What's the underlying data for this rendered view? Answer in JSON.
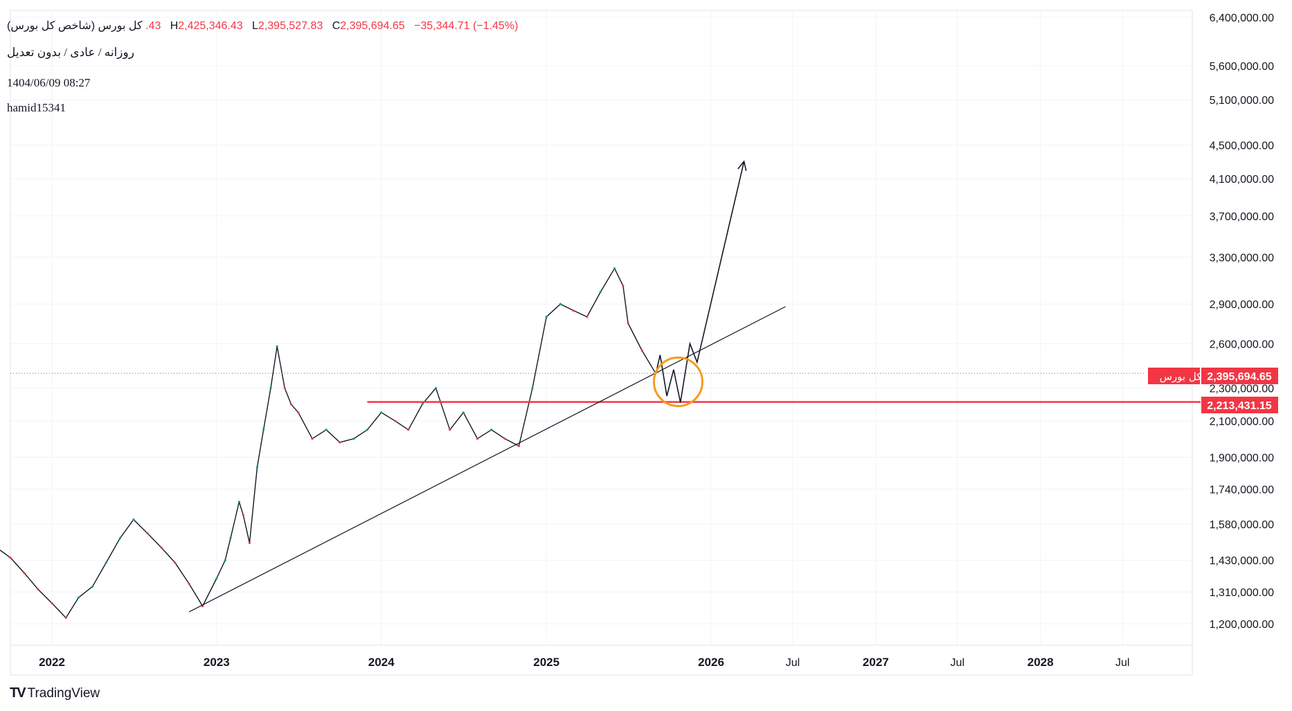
{
  "header": {
    "symbol_name": "کل بورس (شاخص کل بورس)",
    "open_partial": ".43",
    "high_prefix": "H",
    "high_value": "2,425,346.43",
    "low_prefix": "L",
    "low_value": "2,395,527.83",
    "close_prefix": "C",
    "close_value": "2,395,694.65",
    "change": "−35,344.71 (−1.45%)",
    "interval_line": "روزانه / عادی / بدون تعدیل",
    "timestamp": "1404/06/09 08:27",
    "author": "hamid15341"
  },
  "price_badge": {
    "name": "کل بورس",
    "value": "2,395,694.65",
    "color": "#f23645"
  },
  "support_badge": {
    "value": "2,213,431.15",
    "color": "#f23645"
  },
  "brand": {
    "logo_mark": "TV",
    "name": "TradingView"
  },
  "chart_data": {
    "type": "line",
    "scale": "log",
    "ylim": [
      1150000,
      6500000
    ],
    "y_ticks": [
      "6,400,000.00",
      "5,600,000.00",
      "5,100,000.00",
      "4,500,000.00",
      "4,100,000.00",
      "3,700,000.00",
      "3,300,000.00",
      "2,900,000.00",
      "2,600,000.00",
      "2,300,000.00",
      "2,100,000.00",
      "1,900,000.00",
      "1,740,000.00",
      "1,580,000.00",
      "1,430,000.00",
      "1,310,000.00",
      "1,200,000.00"
    ],
    "y_tick_values": [
      6400000,
      5600000,
      5100000,
      4500000,
      4100000,
      3700000,
      3300000,
      2900000,
      2600000,
      2300000,
      2100000,
      1900000,
      1740000,
      1580000,
      1430000,
      1310000,
      1200000
    ],
    "x_ticks": [
      "2022",
      "2023",
      "2024",
      "2025",
      "2026",
      "Jul",
      "2027",
      "Jul",
      "2028",
      "Jul"
    ],
    "x_tick_dates": [
      "2022-01-01",
      "2023-01-01",
      "2024-01-01",
      "2025-01-01",
      "2026-01-01",
      "2026-07-01",
      "2027-01-01",
      "2027-07-01",
      "2028-01-01",
      "2028-07-01"
    ],
    "x_tick_major": [
      true,
      true,
      true,
      true,
      true,
      false,
      true,
      false,
      true,
      false
    ],
    "series": [
      {
        "color": "#131722",
        "x": [
          "2021-09-01",
          "2021-10-01",
          "2021-11-01",
          "2021-12-01",
          "2022-01-01",
          "2022-02-01",
          "2022-03-01",
          "2022-04-01",
          "2022-05-01",
          "2022-06-01",
          "2022-07-01",
          "2022-08-01",
          "2022-09-01",
          "2022-10-01",
          "2022-11-01",
          "2022-12-01",
          "2023-01-01",
          "2023-01-20",
          "2023-02-01",
          "2023-02-20",
          "2023-03-01",
          "2023-03-15",
          "2023-04-01",
          "2023-04-15",
          "2023-05-01",
          "2023-05-15",
          "2023-06-01",
          "2023-06-15",
          "2023-07-01",
          "2023-08-01",
          "2023-09-01",
          "2023-10-01",
          "2023-11-01",
          "2023-12-01",
          "2024-01-01",
          "2024-02-01",
          "2024-03-01",
          "2024-04-01",
          "2024-05-01",
          "2024-06-01",
          "2024-07-01",
          "2024-08-01",
          "2024-09-01",
          "2024-10-01",
          "2024-11-01",
          "2024-12-01",
          "2025-01-01",
          "2025-02-01",
          "2025-03-01",
          "2025-04-01",
          "2025-05-01",
          "2025-06-01",
          "2025-06-20",
          "2025-07-01",
          "2025-08-01",
          "2025-08-31"
        ],
        "y": [
          1480000,
          1440000,
          1380000,
          1320000,
          1270000,
          1220000,
          1290000,
          1330000,
          1420000,
          1520000,
          1600000,
          1540000,
          1480000,
          1420000,
          1340000,
          1260000,
          1360000,
          1430000,
          1520000,
          1680000,
          1620000,
          1500000,
          1850000,
          2050000,
          2300000,
          2580000,
          2300000,
          2200000,
          2150000,
          2000000,
          2050000,
          1980000,
          2000000,
          2050000,
          2150000,
          2100000,
          2050000,
          2200000,
          2300000,
          2050000,
          2150000,
          2000000,
          2050000,
          2000000,
          1960000,
          2300000,
          2800000,
          2900000,
          2850000,
          2800000,
          3000000,
          3200000,
          3050000,
          2750000,
          2550000,
          2395695
        ]
      }
    ],
    "current_price": 2395694.65,
    "support_level": 2213431.15,
    "annotations": {
      "trendline": [
        [
          "2022-11-01",
          1240000
        ],
        [
          "2026-06-15",
          2880000
        ]
      ],
      "support_line_start": "2023-12-01",
      "projection": [
        [
          "2025-09-01",
          2400000
        ],
        [
          "2025-09-10",
          2520000
        ],
        [
          "2025-09-25",
          2250000
        ],
        [
          "2025-10-10",
          2420000
        ],
        [
          "2025-10-25",
          2210000
        ],
        [
          "2025-11-15",
          2600000
        ],
        [
          "2025-12-01",
          2470000
        ],
        [
          "2026-03-15",
          4300000
        ]
      ],
      "circle_center": [
        "2025-10-20",
        2340000
      ],
      "circle_color": "#f59c1a"
    }
  }
}
